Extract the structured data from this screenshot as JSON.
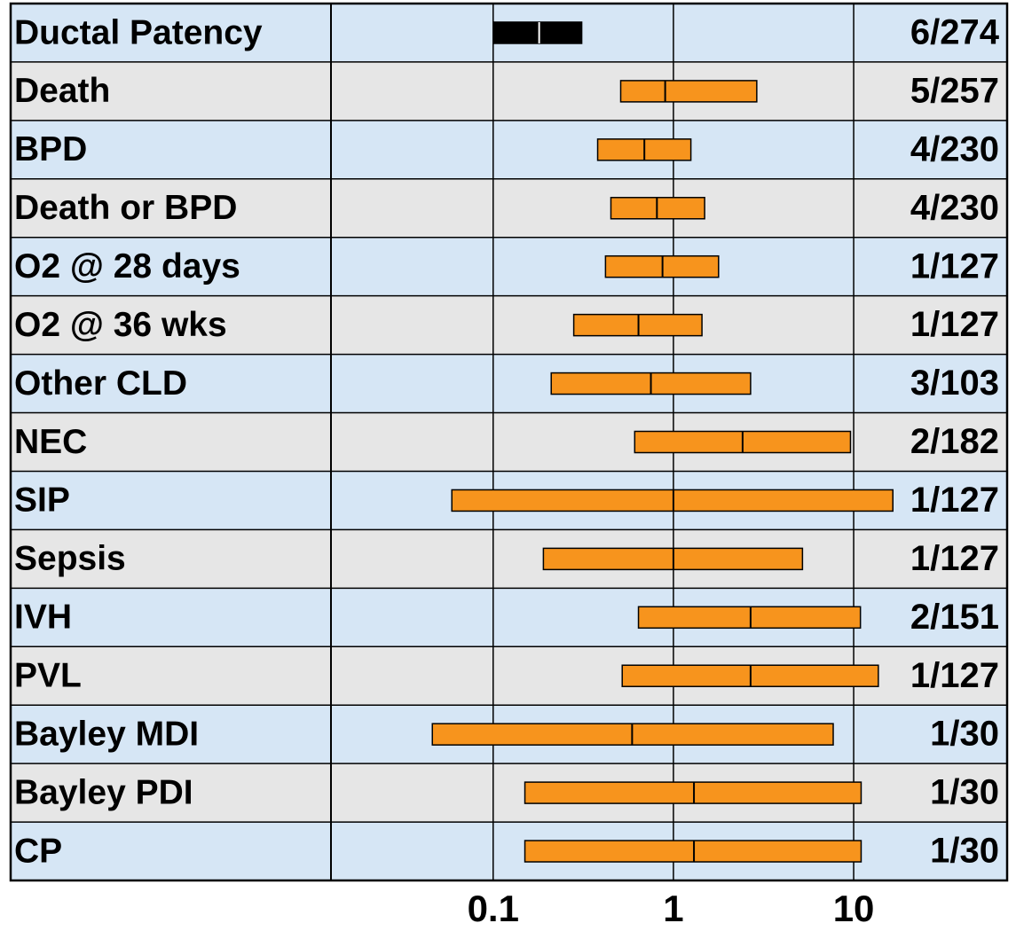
{
  "chart_data": {
    "type": "forest",
    "categories": [
      "Ductal Patency",
      "Death",
      "BPD",
      "Death or BPD",
      "O2 @ 28 days",
      "O2 @ 36 wks",
      "Other CLD",
      "NEC",
      "SIP",
      "Sepsis",
      "IVH",
      "PVL",
      "Bayley MDI",
      "Bayley PDI",
      "CP"
    ],
    "estimates": [
      0.18,
      0.9,
      0.69,
      0.81,
      0.87,
      0.64,
      0.75,
      2.42,
      1.0,
      1.0,
      2.68,
      2.68,
      0.59,
      1.3,
      1.3
    ],
    "lower": [
      0.1,
      0.51,
      0.38,
      0.45,
      0.42,
      0.28,
      0.21,
      0.61,
      0.059,
      0.19,
      0.64,
      0.52,
      0.046,
      0.15,
      0.15
    ],
    "upper": [
      0.31,
      2.9,
      1.25,
      1.49,
      1.78,
      1.44,
      2.68,
      9.6,
      16.5,
      5.2,
      10.9,
      13.7,
      7.7,
      11.0,
      11.0
    ],
    "study_counts": [
      "6/274",
      "5/257",
      "4/230",
      "4/230",
      "1/127",
      "1/127",
      "3/103",
      "2/182",
      "1/127",
      "1/127",
      "2/151",
      "1/127",
      "1/30",
      "1/30",
      "1/30"
    ],
    "colors": [
      "#000000",
      "#f7941d",
      "#f7941d",
      "#f7941d",
      "#f7941d",
      "#f7941d",
      "#f7941d",
      "#f7941d",
      "#f7941d",
      "#f7941d",
      "#f7941d",
      "#f7941d",
      "#f7941d",
      "#f7941d",
      "#f7941d"
    ],
    "xscale": "log",
    "xlim": [
      0.0126,
      71
    ],
    "xticks": [
      0.1,
      1,
      10
    ],
    "grid": true
  }
}
